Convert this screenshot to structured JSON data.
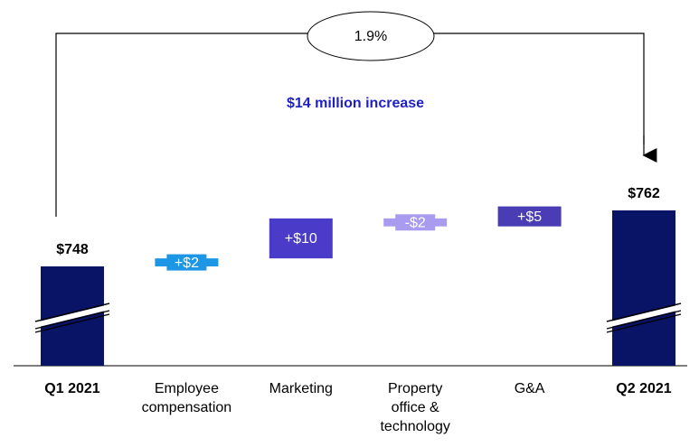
{
  "chart_data": {
    "type": "waterfall",
    "categories": [
      "Q1 2021",
      "Employee\ncompensation",
      "Marketing",
      "Property\noffice &\ntechnology",
      "G&A",
      "Q2 2021"
    ],
    "values": [
      748,
      2,
      10,
      -2,
      5,
      762
    ],
    "value_labels": [
      "$748",
      "+$2",
      "+$10",
      "-$2",
      "+$5",
      "$762"
    ],
    "measure": [
      "total",
      "relative",
      "relative",
      "relative",
      "relative",
      "total"
    ],
    "colors": [
      "#0a1466",
      "#1e96e6",
      "#4a3cc8",
      "#a99cf0",
      "#4a3cb4",
      "#0a1466"
    ],
    "annotations": {
      "change": "1.9%",
      "increase": "$14 million increase"
    }
  }
}
